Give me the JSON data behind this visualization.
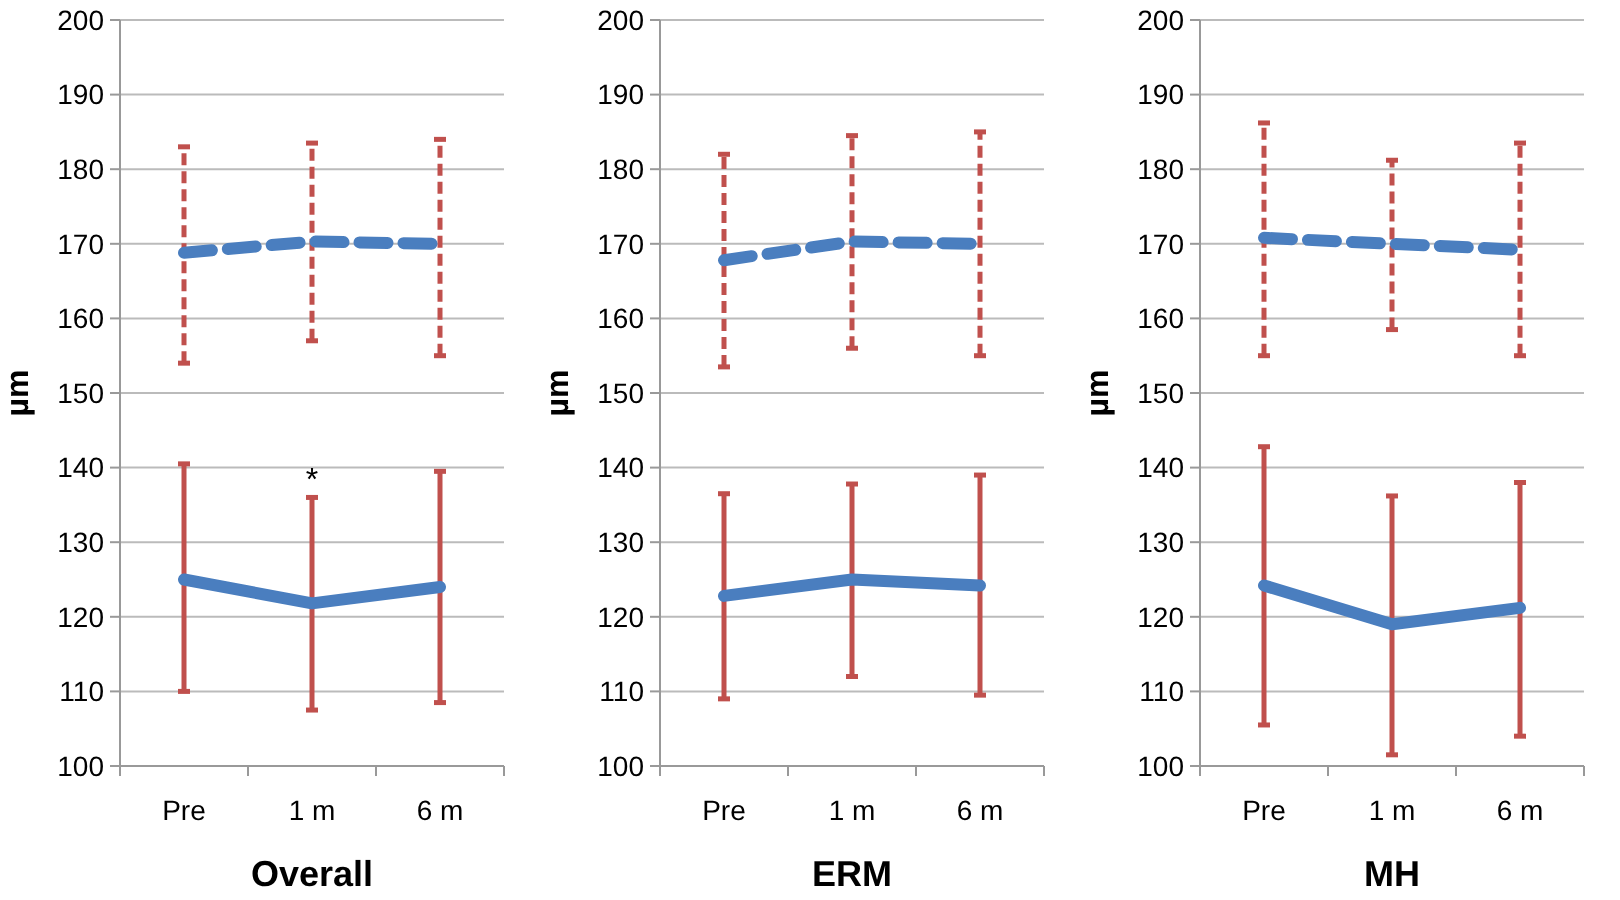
{
  "chart_data": [
    {
      "type": "line",
      "xlabel": "Overall",
      "ylabel": "µm",
      "categories": [
        "Pre",
        "1 m",
        "6 m"
      ],
      "ylim": [
        100,
        200
      ],
      "yticks": [
        100,
        110,
        120,
        130,
        140,
        150,
        160,
        170,
        180,
        190,
        200
      ],
      "grid": "y",
      "marker": "none",
      "series": [
        {
          "color": "#4a7ebf",
          "line_style": "dashed",
          "values": [
            168.8,
            170.3,
            170
          ],
          "errors": [
            [
              154,
              183
            ],
            [
              157,
              183.5
            ],
            [
              155,
              184
            ]
          ]
        },
        {
          "color": "#4a7ebf",
          "line_style": "solid",
          "values": [
            125,
            121.8,
            124
          ],
          "errors": [
            [
              110,
              140.5
            ],
            [
              107.5,
              136
            ],
            [
              108.5,
              139.5
            ]
          ]
        }
      ],
      "annotations": [
        "*"
      ]
    },
    {
      "type": "line",
      "xlabel": "ERM",
      "ylabel": "µm",
      "categories": [
        "Pre",
        "1 m",
        "6 m"
      ],
      "ylim": [
        100,
        200
      ],
      "yticks": [
        100,
        110,
        120,
        130,
        140,
        150,
        160,
        170,
        180,
        190,
        200
      ],
      "grid": "y",
      "marker": "none",
      "series": [
        {
          "color": "#4a7ebf",
          "line_style": "dashed",
          "values": [
            167.8,
            170.3,
            170
          ],
          "errors": [
            [
              153.5,
              182
            ],
            [
              156,
              184.5
            ],
            [
              155,
              185
            ]
          ]
        },
        {
          "color": "#4a7ebf",
          "line_style": "solid",
          "values": [
            122.8,
            125,
            124.2
          ],
          "errors": [
            [
              109,
              136.5
            ],
            [
              112,
              137.8
            ],
            [
              109.5,
              139
            ]
          ]
        }
      ]
    },
    {
      "type": "line",
      "xlabel": "MH",
      "ylabel": "µm",
      "categories": [
        "Pre",
        "1 m",
        "6 m"
      ],
      "ylim": [
        100,
        200
      ],
      "yticks": [
        100,
        110,
        120,
        130,
        140,
        150,
        160,
        170,
        180,
        190,
        200
      ],
      "grid": "y",
      "marker": "none",
      "series": [
        {
          "color": "#4a7ebf",
          "line_style": "dashed",
          "values": [
            170.8,
            170,
            169.2
          ],
          "errors": [
            [
              155,
              186.2
            ],
            [
              158.5,
              181.2
            ],
            [
              155,
              183.5
            ]
          ]
        },
        {
          "color": "#4a7ebf",
          "line_style": "solid",
          "values": [
            124.2,
            119,
            121.2
          ],
          "errors": [
            [
              105.5,
              142.8
            ],
            [
              101.5,
              136.2
            ],
            [
              104,
              138
            ]
          ]
        }
      ]
    }
  ]
}
